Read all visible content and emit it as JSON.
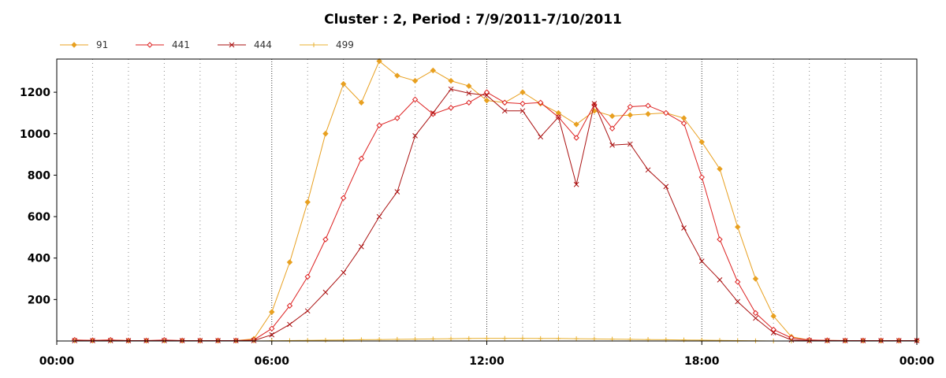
{
  "chart_data": {
    "type": "line",
    "title": "Cluster : 2, Period : 7/9/2011-7/10/2011",
    "xlabel": "",
    "ylabel": "",
    "x_tick_labels": [
      "00:00",
      "06:00",
      "12:00",
      "18:00",
      "00:00"
    ],
    "x_tick_hours": [
      0,
      6,
      12,
      18,
      24
    ],
    "xlim": [
      0,
      24
    ],
    "y_ticks": [
      200,
      400,
      600,
      800,
      1000,
      1200
    ],
    "ylim": [
      0,
      1360
    ],
    "grid": "vertical dotted",
    "legend_position": "top-left",
    "x": [
      0.5,
      1.0,
      1.5,
      2.0,
      2.5,
      3.0,
      3.5,
      4.0,
      4.5,
      5.0,
      5.5,
      6.0,
      6.5,
      7.0,
      7.5,
      8.0,
      8.5,
      9.0,
      9.5,
      10.0,
      10.5,
      11.0,
      11.5,
      12.0,
      12.5,
      13.0,
      13.5,
      14.0,
      14.5,
      15.0,
      15.5,
      16.0,
      16.5,
      17.0,
      17.5,
      18.0,
      18.5,
      19.0,
      19.5,
      20.0,
      20.5,
      21.0,
      21.5,
      22.0,
      22.5,
      23.0,
      23.5,
      24.0
    ],
    "series": [
      {
        "name": "91",
        "color": "#e8a020",
        "marker": "diamond",
        "values": [
          5,
          3,
          5,
          2,
          2,
          3,
          2,
          2,
          2,
          2,
          10,
          140,
          380,
          670,
          1000,
          1240,
          1150,
          1350,
          1280,
          1255,
          1305,
          1255,
          1230,
          1160,
          1150,
          1200,
          1145,
          1100,
          1045,
          1110,
          1085,
          1090,
          1095,
          1100,
          1075,
          960,
          830,
          550,
          300,
          120,
          20,
          5,
          3,
          2,
          2,
          2,
          2,
          2
        ]
      },
      {
        "name": "441",
        "color": "#dd2222",
        "marker": "diamond-open",
        "values": [
          5,
          3,
          5,
          2,
          2,
          5,
          2,
          2,
          2,
          2,
          5,
          60,
          170,
          310,
          490,
          690,
          880,
          1040,
          1075,
          1165,
          1095,
          1125,
          1150,
          1200,
          1150,
          1145,
          1150,
          1080,
          980,
          1140,
          1025,
          1130,
          1135,
          1100,
          1050,
          790,
          490,
          285,
          135,
          55,
          15,
          5,
          3,
          2,
          2,
          2,
          2,
          2
        ]
      },
      {
        "name": "444",
        "color": "#aa1111",
        "marker": "x",
        "values": [
          2,
          2,
          2,
          2,
          2,
          2,
          2,
          2,
          2,
          2,
          2,
          30,
          80,
          145,
          235,
          330,
          455,
          600,
          720,
          990,
          1100,
          1215,
          1195,
          1185,
          1110,
          1110,
          985,
          1080,
          755,
          1145,
          945,
          950,
          825,
          745,
          545,
          385,
          295,
          190,
          110,
          40,
          5,
          2,
          2,
          2,
          2,
          2,
          2,
          2
        ]
      },
      {
        "name": "499",
        "color": "#e8b030",
        "marker": "plus",
        "values": [
          0,
          0,
          0,
          0,
          0,
          0,
          0,
          0,
          0,
          0,
          0,
          1,
          2,
          3,
          4,
          5,
          6,
          7,
          8,
          9,
          10,
          11,
          12,
          13,
          13,
          13,
          12,
          12,
          11,
          10,
          9,
          8,
          7,
          6,
          5,
          4,
          3,
          2,
          1,
          0,
          0,
          0,
          0,
          0,
          0,
          0,
          0,
          0
        ]
      }
    ]
  }
}
